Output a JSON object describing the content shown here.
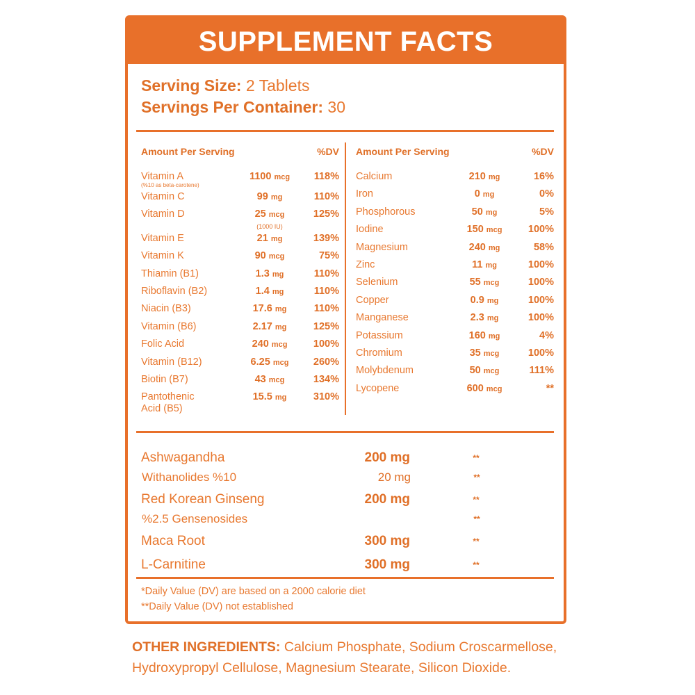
{
  "header": {
    "title": "SUPPLEMENT FACTS"
  },
  "serving": {
    "size_label": "Serving Size:",
    "size_value": "2 Tablets",
    "per_container_label": "Servings Per Container:",
    "per_container_value": "30"
  },
  "left": {
    "headers": [
      "Amount Per Serving",
      "%DV"
    ],
    "rows": [
      {
        "name": "Vitamin A",
        "note": "(%10 as beta-carotene)",
        "amount": "1100",
        "unit": "mcg",
        "dv": "118%"
      },
      {
        "name": "Vitamin C",
        "amount": "99",
        "unit": "mg",
        "dv": "110%"
      },
      {
        "name": "Vitamin D",
        "amount": "25",
        "unit": "mcg",
        "amount_note": "(1000 IU)",
        "dv": "125%"
      },
      {
        "name": "Vitamin E",
        "amount": "21",
        "unit": "mg",
        "dv": "139%"
      },
      {
        "name": "Vitamin K",
        "amount": "90",
        "unit": "mcg",
        "dv": "75%"
      },
      {
        "name": "Thiamin (B1)",
        "amount": "1.3",
        "unit": "mg",
        "dv": "110%"
      },
      {
        "name": "Riboflavin (B2)",
        "amount": "1.4",
        "unit": "mg",
        "dv": "110%"
      },
      {
        "name": "Niacin (B3)",
        "amount": "17.6",
        "unit": "mg",
        "dv": "110%"
      },
      {
        "name": "Vitamin (B6)",
        "amount": "2.17",
        "unit": "mg",
        "dv": "125%"
      },
      {
        "name": "Folic Acid",
        "amount": "240",
        "unit": "mcg",
        "dv": "100%"
      },
      {
        "name": "Vitamin (B12)",
        "amount": "6.25",
        "unit": "mcg",
        "dv": "260%"
      },
      {
        "name": "Biotin (B7)",
        "amount": "43",
        "unit": "mcg",
        "dv": "134%"
      },
      {
        "name": "Pantothenic\nAcid (B5)",
        "amount": "15.5",
        "unit": "mg",
        "dv": "310%"
      }
    ]
  },
  "right": {
    "headers": [
      "Amount Per Serving",
      "%DV"
    ],
    "rows": [
      {
        "name": "Calcium",
        "amount": "210",
        "unit": "mg",
        "dv": "16%"
      },
      {
        "name": "Iron",
        "amount": "0",
        "unit": "mg",
        "dv": "0%"
      },
      {
        "name": "Phosphorous",
        "amount": "50",
        "unit": "mg",
        "dv": "5%"
      },
      {
        "name": "Iodine",
        "amount": "150",
        "unit": "mcg",
        "dv": "100%"
      },
      {
        "name": "Magnesium",
        "amount": "240",
        "unit": "mg",
        "dv": "58%"
      },
      {
        "name": "Zinc",
        "amount": "11",
        "unit": "mg",
        "dv": "100%"
      },
      {
        "name": "Selenium",
        "amount": "55",
        "unit": "mcg",
        "dv": "100%"
      },
      {
        "name": "Copper",
        "amount": "0.9",
        "unit": "mg",
        "dv": "100%"
      },
      {
        "name": "Manganese",
        "amount": "2.3",
        "unit": "mg",
        "dv": "100%"
      },
      {
        "name": "Potassium",
        "amount": "160",
        "unit": "mg",
        "dv": "4%"
      },
      {
        "name": "Chromium",
        "amount": "35",
        "unit": "mcg",
        "dv": "100%"
      },
      {
        "name": "Molybdenum",
        "amount": "50",
        "unit": "mcg",
        "dv": "111%"
      },
      {
        "name": "Lycopene",
        "amount": "600",
        "unit": "mcg",
        "dv": "**"
      }
    ]
  },
  "herbs": [
    {
      "name": "Ashwagandha",
      "amount": "200 mg",
      "dv": "**",
      "sub": {
        "name": "Withanolides %10",
        "amount": "20 mg",
        "dv": "**"
      }
    },
    {
      "name": "Red Korean Ginseng",
      "amount": "200 mg",
      "dv": "**",
      "sub": {
        "name": "%2.5 Gensenosides",
        "dv": "**"
      }
    },
    {
      "name": "Maca Root",
      "amount": "300 mg",
      "dv": "**"
    },
    {
      "name": "L-Carnitine",
      "amount": "300 mg",
      "dv": "**"
    }
  ],
  "footnotes": [
    "*Daily Value (DV) are based on a 2000 calorie diet",
    "**Daily Value (DV) not established"
  ],
  "other_ingredients": {
    "label": "OTHER INGREDIENTS:",
    "text": "Calcium Phosphate, Sodium Croscarmellose, Hydroxypropyl Cellulose, Magnesium Stearate, Silicon Dioxide."
  }
}
